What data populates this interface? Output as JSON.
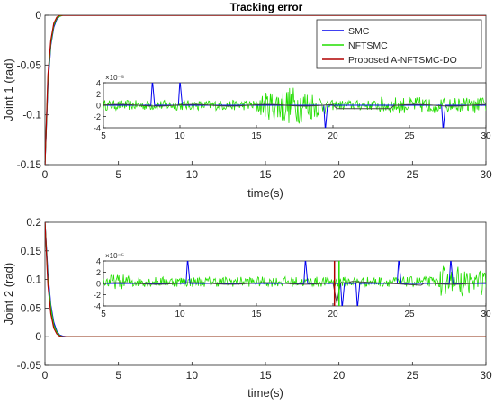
{
  "title": "Tracking error",
  "colors": {
    "smc": "#0000ee",
    "nftsmc": "#22dd00",
    "proposed": "#b00000",
    "axis": "#262626"
  },
  "chart_data": [
    {
      "type": "line",
      "ylabel": "Joint 1 (rad)",
      "xlabel": "time(s)",
      "xlim": [
        0,
        30
      ],
      "ylim": [
        -0.15,
        0.0
      ],
      "xticks": [
        "0",
        "5",
        "10",
        "15",
        "20",
        "25",
        "30"
      ],
      "yticks": [
        "0",
        "-0.05",
        "-0.1",
        "-0.15"
      ],
      "series": [
        {
          "name": "SMC",
          "x": [
            0,
            0.2,
            0.4,
            0.6,
            0.8,
            1.0,
            1.2,
            1.5,
            2,
            30
          ],
          "values": [
            -0.15,
            -0.07,
            -0.03,
            -0.012,
            -0.004,
            -0.001,
            0,
            0,
            0,
            0
          ]
        },
        {
          "name": "NFTSMC",
          "x": [
            0,
            0.2,
            0.4,
            0.6,
            0.8,
            1.0,
            1.2,
            1.5,
            2,
            30
          ],
          "values": [
            -0.15,
            -0.065,
            -0.028,
            -0.01,
            -0.003,
            -0.001,
            0,
            0,
            0,
            0
          ]
        },
        {
          "name": "Proposed A-NFTSMC-DO",
          "x": [
            0,
            0.2,
            0.4,
            0.6,
            0.8,
            1.0,
            1.2,
            1.5,
            2,
            30
          ],
          "values": [
            -0.15,
            -0.06,
            -0.025,
            -0.008,
            -0.002,
            0,
            0,
            0,
            0,
            0
          ]
        }
      ],
      "legend": [
        "SMC",
        "NFTSMC",
        "Proposed A-NFTSMC-DO"
      ],
      "legend_position": "top-right",
      "inset": {
        "xlim": [
          5,
          30
        ],
        "ylim": [
          -4,
          4
        ],
        "exponent": "×10⁻⁵",
        "xticks": [
          "5",
          "10",
          "15",
          "20",
          "25",
          "30"
        ],
        "yticks": [
          "4",
          "2",
          "0",
          "-2",
          "-4"
        ]
      }
    },
    {
      "type": "line",
      "ylabel": "Joint 2 (rad)",
      "xlabel": "time(s)",
      "xlim": [
        0,
        30
      ],
      "ylim": [
        -0.05,
        0.2
      ],
      "xticks": [
        "0",
        "5",
        "10",
        "15",
        "20",
        "25",
        "30"
      ],
      "yticks": [
        "0.2",
        "0.15",
        "0.1",
        "0.05",
        "0",
        "-0.05"
      ],
      "series": [
        {
          "name": "SMC",
          "x": [
            0,
            0.2,
            0.4,
            0.6,
            0.8,
            1.0,
            1.2,
            1.5,
            2,
            30
          ],
          "values": [
            0.2,
            0.11,
            0.055,
            0.025,
            0.01,
            0.003,
            0.001,
            0,
            0,
            0
          ]
        },
        {
          "name": "NFTSMC",
          "x": [
            0,
            0.2,
            0.4,
            0.6,
            0.8,
            1.0,
            1.2,
            1.5,
            2,
            30
          ],
          "values": [
            0.2,
            0.1,
            0.05,
            0.02,
            0.008,
            0.002,
            0,
            0,
            0,
            0
          ]
        },
        {
          "name": "Proposed A-NFTSMC-DO",
          "x": [
            0,
            0.2,
            0.4,
            0.6,
            0.8,
            1.0,
            1.2,
            1.5,
            2,
            30
          ],
          "values": [
            0.2,
            0.09,
            0.04,
            0.015,
            0.005,
            0.001,
            0,
            0,
            0,
            0
          ]
        }
      ],
      "inset": {
        "xlim": [
          5,
          30
        ],
        "ylim": [
          -4,
          4
        ],
        "exponent": "×10⁻⁵",
        "xticks": [
          "5",
          "10",
          "15",
          "20",
          "25",
          "30"
        ],
        "yticks": [
          "4",
          "2",
          "0",
          "-2",
          "-4"
        ]
      }
    }
  ]
}
